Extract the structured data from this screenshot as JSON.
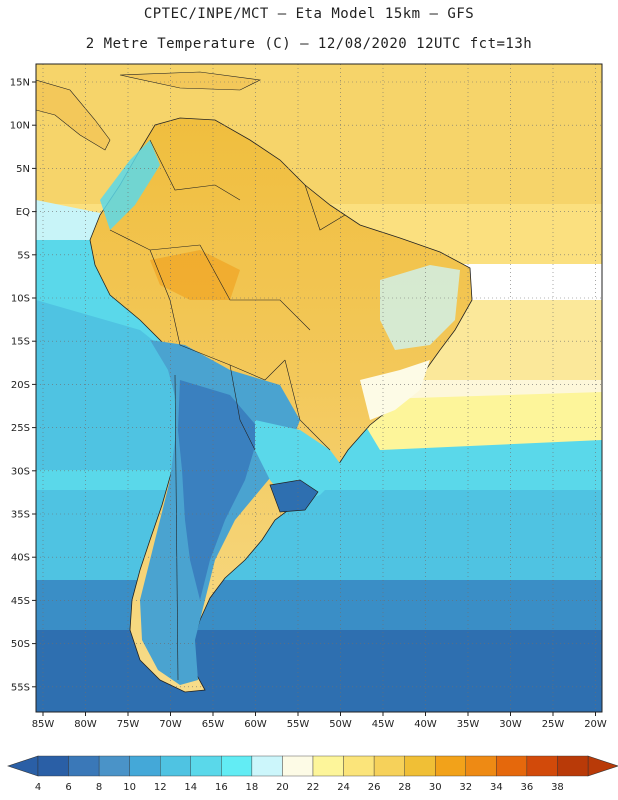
{
  "header": {
    "line1": "CPTEC/INPE/MCT –  Eta Model 15km – GFS",
    "line2": "2 Metre Temperature (C) – 12/08/2020 12UTC fct=13h"
  },
  "map": {
    "region": "South America",
    "lat_ticks": [
      "15N",
      "10N",
      "5N",
      "EQ",
      "5S",
      "10S",
      "15S",
      "20S",
      "25S",
      "30S",
      "35S",
      "40S",
      "45S",
      "50S",
      "55S"
    ],
    "lon_ticks": [
      "85W",
      "80W",
      "75W",
      "70W",
      "65W",
      "60W",
      "55W",
      "50W",
      "45W",
      "40W",
      "35W",
      "30W",
      "25W",
      "20W"
    ],
    "ocean_colors": {
      "tropical_warm": "#f6d46a",
      "subtropical": "#fdf7c2",
      "cool": "#56d0e6",
      "cold": "#3a8ec6",
      "coldest": "#2e6fb0"
    }
  },
  "colorbar": {
    "labels": [
      "4",
      "6",
      "8",
      "10",
      "12",
      "14",
      "16",
      "18",
      "20",
      "22",
      "24",
      "26",
      "28",
      "30",
      "32",
      "34",
      "36",
      "38"
    ],
    "colors": [
      "#2a5fa6",
      "#3a78b8",
      "#4a93c8",
      "#44a8d8",
      "#4fc3e2",
      "#5ad8ea",
      "#62ecf4",
      "#ccf6fb",
      "#fdfbe6",
      "#fdf59a",
      "#fbe47a",
      "#f6d15a",
      "#f0bf36",
      "#f2a21a",
      "#ee8a14",
      "#e5680c",
      "#d24a0a",
      "#b93a08"
    ]
  }
}
